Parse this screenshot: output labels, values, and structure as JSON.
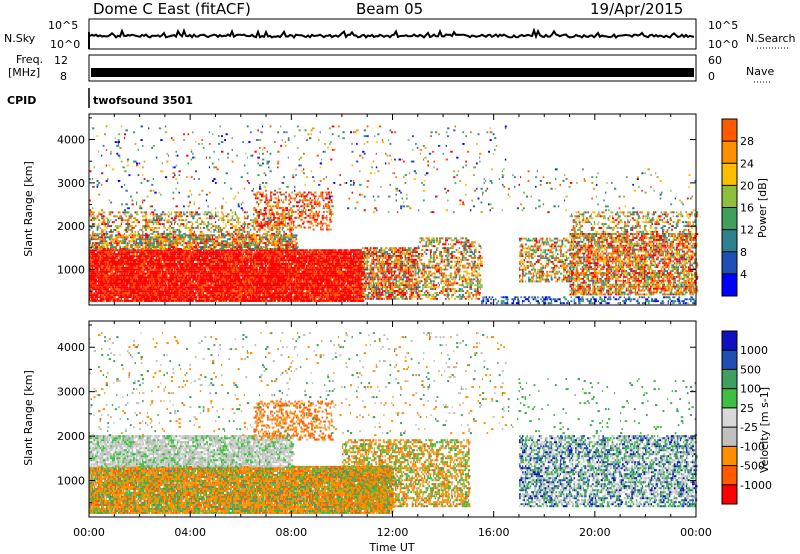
{
  "header": {
    "radar": "Dome C East (fitACF)",
    "beam": "Beam 05",
    "date": "19/Apr/2015"
  },
  "summary": {
    "nsky_label": "N.Sky",
    "nsearch_label": "N.Search",
    "freq_label": [
      "Freq.",
      "[MHz]"
    ],
    "nave_label": "Nave",
    "cpid_label": "CPID",
    "cpid_value": "twofsound 3501",
    "noise_ticks": [
      "10^5",
      "10^0"
    ],
    "freq_ticks": [
      "12",
      "8"
    ],
    "nave_ticks": [
      "60",
      "0"
    ]
  },
  "colors": {
    "power": [
      "#0000ff",
      "#1f4fb5",
      "#2f7f8f",
      "#3f9f5f",
      "#8fbf3f",
      "#ffbf00",
      "#ff8f00",
      "#ff5a00",
      "#ff0000"
    ],
    "velocity": [
      "#ff0000",
      "#ff5a00",
      "#ff8f00",
      "#c0c0c0",
      "#d8d8d8",
      "#3fbf3f",
      "#3f9f5f",
      "#1f4fb5",
      "#1010c0"
    ]
  },
  "chart_data": [
    {
      "type": "heatmap",
      "name": "power",
      "xlabel": "Time UT",
      "ylabel": "Slant Range [km]",
      "x_ticks": [
        "00:00",
        "04:00",
        "08:00",
        "12:00",
        "16:00",
        "20:00",
        "00:00"
      ],
      "xlim_hours": [
        0,
        24
      ],
      "y_ticks": [
        1000,
        2000,
        3000,
        4000
      ],
      "ylim": [
        180,
        4590
      ],
      "colorbar": {
        "label": "Power [dB]",
        "ticks": [
          "4",
          "8",
          "12",
          "16",
          "20",
          "24",
          "28"
        ],
        "range": [
          0,
          30
        ]
      },
      "echo_regions": [
        {
          "t": [
            0.0,
            10.8
          ],
          "r": [
            300,
            1500
          ],
          "level": "high"
        },
        {
          "t": [
            0.0,
            8.0
          ],
          "r": [
            1500,
            2300
          ],
          "level": "medium"
        },
        {
          "t": [
            6.5,
            9.5
          ],
          "r": [
            1900,
            2800
          ],
          "level": "medium"
        },
        {
          "t": [
            10.8,
            15.5
          ],
          "r": [
            300,
            1700
          ],
          "level": "medium-high"
        },
        {
          "t": [
            17.0,
            19.0
          ],
          "r": [
            700,
            1700
          ],
          "level": "low-medium"
        },
        {
          "t": [
            19.0,
            24.0
          ],
          "r": [
            400,
            2200
          ],
          "level": "medium"
        }
      ]
    },
    {
      "type": "heatmap",
      "name": "velocity",
      "xlabel": "Time UT",
      "ylabel": "Slant Range [km]",
      "x_ticks": [
        "00:00",
        "04:00",
        "08:00",
        "12:00",
        "16:00",
        "20:00",
        "00:00"
      ],
      "xlim_hours": [
        0,
        24
      ],
      "y_ticks": [
        1000,
        2000,
        3000,
        4000
      ],
      "ylim": [
        180,
        4590
      ],
      "colorbar": {
        "label": "Velocity [m s-1]",
        "ticks": [
          "1000",
          "500",
          "100",
          "25",
          "-25",
          "-100",
          "-500",
          "-1000"
        ]
      },
      "echo_regions": [
        {
          "t": [
            0.0,
            12.0
          ],
          "r": [
            300,
            1300
          ],
          "level": "-100 to -500"
        },
        {
          "t": [
            0.0,
            8.0
          ],
          "r": [
            1300,
            2000
          ],
          "level": "-25 to 25"
        },
        {
          "t": [
            6.5,
            9.5
          ],
          "r": [
            1900,
            2800
          ],
          "level": "-100 to -500"
        },
        {
          "t": [
            10.0,
            15.0
          ],
          "r": [
            400,
            1900
          ],
          "level": "25 to 100"
        },
        {
          "t": [
            17.0,
            24.0
          ],
          "r": [
            400,
            2000
          ],
          "level": "100 to 1000"
        }
      ]
    }
  ]
}
